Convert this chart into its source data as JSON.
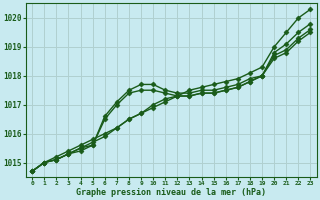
{
  "bg_color": "#c8eaf0",
  "grid_color": "#b0d0d0",
  "line_color": "#1a5c1a",
  "title": "Graphe pression niveau de la mer (hPa)",
  "xlim": [
    -0.5,
    23.5
  ],
  "ylim": [
    1014.5,
    1020.5
  ],
  "yticks": [
    1015,
    1016,
    1017,
    1018,
    1019,
    1020
  ],
  "xticks": [
    0,
    1,
    2,
    3,
    4,
    5,
    6,
    7,
    8,
    9,
    10,
    11,
    12,
    13,
    14,
    15,
    16,
    17,
    18,
    19,
    20,
    21,
    22,
    23
  ],
  "lines": [
    {
      "x": [
        0,
        1,
        2,
        3,
        4,
        5,
        6,
        7,
        8,
        9,
        10,
        11,
        12,
        13,
        14,
        15,
        16,
        17,
        18,
        19,
        20,
        21,
        22,
        23
      ],
      "y": [
        1014.7,
        1015.0,
        1015.2,
        1015.4,
        1015.6,
        1015.8,
        1016.0,
        1016.2,
        1016.5,
        1016.7,
        1016.9,
        1017.1,
        1017.3,
        1017.5,
        1017.6,
        1017.7,
        1017.8,
        1017.9,
        1018.1,
        1018.3,
        1019.0,
        1019.5,
        1020.0,
        1020.3
      ],
      "marker": "D",
      "markersize": 2.5,
      "lw": 1.0
    },
    {
      "x": [
        0,
        1,
        2,
        3,
        4,
        5,
        6,
        7,
        8,
        9,
        10,
        11,
        12,
        13,
        14,
        15,
        16,
        17,
        18,
        19,
        20,
        21,
        22,
        23
      ],
      "y": [
        1014.7,
        1015.0,
        1015.1,
        1015.3,
        1015.5,
        1015.7,
        1015.9,
        1016.2,
        1016.5,
        1016.7,
        1017.0,
        1017.2,
        1017.3,
        1017.3,
        1017.4,
        1017.4,
        1017.5,
        1017.6,
        1017.8,
        1018.0,
        1018.8,
        1019.1,
        1019.5,
        1019.8
      ],
      "marker": "D",
      "markersize": 2.5,
      "lw": 1.0
    },
    {
      "x": [
        0,
        1,
        2,
        3,
        4,
        5,
        6,
        7,
        8,
        9,
        10,
        11,
        12,
        13,
        14,
        15,
        16,
        17,
        18,
        19,
        20,
        21,
        22,
        23
      ],
      "y": [
        1014.7,
        1015.0,
        1015.1,
        1015.3,
        1015.4,
        1015.6,
        1016.5,
        1017.0,
        1017.4,
        1017.5,
        1017.5,
        1017.4,
        1017.3,
        1017.3,
        1017.4,
        1017.4,
        1017.5,
        1017.6,
        1017.8,
        1018.0,
        1018.7,
        1018.9,
        1019.3,
        1019.6
      ],
      "marker": "D",
      "markersize": 2.5,
      "lw": 1.0
    },
    {
      "x": [
        0,
        1,
        2,
        3,
        4,
        5,
        6,
        7,
        8,
        9,
        10,
        11,
        12,
        13,
        14,
        15,
        16,
        17,
        18,
        19,
        20,
        21,
        22,
        23
      ],
      "y": [
        1014.7,
        1015.0,
        1015.1,
        1015.3,
        1015.5,
        1015.6,
        1016.6,
        1017.1,
        1017.5,
        1017.7,
        1017.7,
        1017.5,
        1017.4,
        1017.4,
        1017.5,
        1017.5,
        1017.6,
        1017.7,
        1017.9,
        1018.0,
        1018.6,
        1018.8,
        1019.2,
        1019.5
      ],
      "marker": "D",
      "markersize": 2.5,
      "lw": 1.0
    }
  ]
}
